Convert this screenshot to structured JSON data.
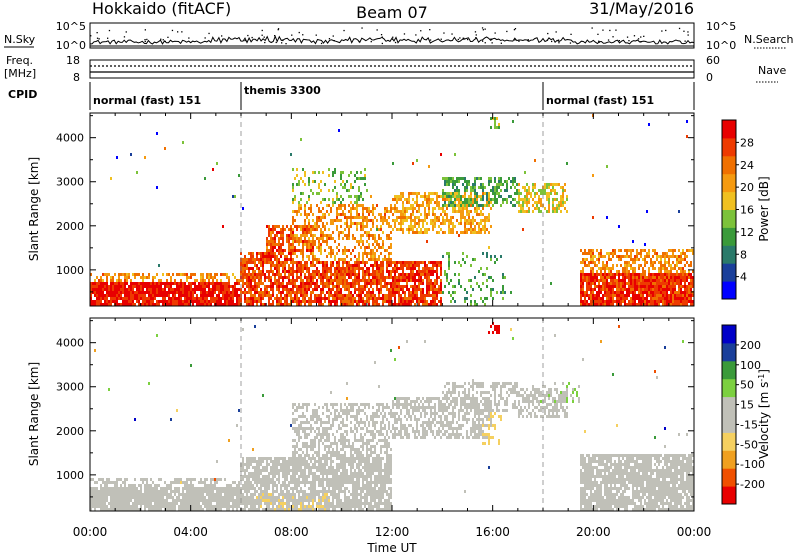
{
  "header": {
    "station": "Hokkaido (fitACF)",
    "beam": "Beam 07",
    "date": "31/May/2016"
  },
  "strip_labels": {
    "nsky": "N.Sky",
    "nsearch": "N.Search",
    "freq_line1": "Freq.",
    "freq_line2": "[MHz]",
    "nave": "Nave",
    "cpid": "CPID"
  },
  "noise_panel": {
    "left_ticks": [
      "10^5",
      "10^0"
    ],
    "right_ticks": [
      "10^5",
      "10^0"
    ]
  },
  "freq_panel": {
    "left_ticks": [
      "18",
      "8"
    ],
    "right_ticks": [
      "60",
      "0"
    ]
  },
  "cpid_segments": [
    {
      "label": "normal (fast) 151",
      "start_hour": 0,
      "end_hour": 6
    },
    {
      "label": "themis 3300",
      "start_hour": 6,
      "end_hour": 18
    },
    {
      "label": "normal (fast) 151",
      "start_hour": 18,
      "end_hour": 24
    }
  ],
  "chart_data": [
    {
      "type": "heatmap",
      "title": "Power",
      "xlabel": "Time UT",
      "ylabel": "Slant Range [km]",
      "x_ticks": [
        "00:00",
        "04:00",
        "08:00",
        "12:00",
        "16:00",
        "20:00",
        "00:00"
      ],
      "xlim_hours": [
        0,
        24
      ],
      "y_ticks": [
        1000,
        2000,
        3000,
        4000
      ],
      "ylim": [
        180,
        4560
      ],
      "colorbar": {
        "label": "Power [dB]",
        "ticks": [
          "4",
          "8",
          "12",
          "16",
          "20",
          "24",
          "28"
        ],
        "range": [
          0,
          32
        ],
        "colors": [
          "#0000ff",
          "#1a3f9a",
          "#2a7a6a",
          "#3a9a3a",
          "#7cc23a",
          "#f0c020",
          "#f59a10",
          "#f07000",
          "#ee3a00",
          "#e80000"
        ]
      },
      "regions": [
        {
          "t0": 0,
          "t1": 6,
          "r0": 200,
          "r1": 700,
          "v": 30,
          "d": 0.9
        },
        {
          "t0": 0,
          "t1": 6,
          "r0": 700,
          "r1": 900,
          "v": 22,
          "d": 0.5
        },
        {
          "t0": 6,
          "t1": 8,
          "r0": 200,
          "r1": 1400,
          "v": 27,
          "d": 0.75
        },
        {
          "t0": 7,
          "t1": 9,
          "r0": 1400,
          "r1": 2000,
          "v": 26,
          "d": 0.65
        },
        {
          "t0": 8,
          "t1": 12,
          "r0": 200,
          "r1": 1200,
          "v": 27,
          "d": 0.8
        },
        {
          "t0": 8,
          "t1": 12,
          "r0": 1200,
          "r1": 2500,
          "v": 22,
          "d": 0.45
        },
        {
          "t0": 8,
          "t1": 11,
          "r0": 2500,
          "r1": 3300,
          "v": 14,
          "d": 0.25
        },
        {
          "t0": 12,
          "t1": 14,
          "r0": 200,
          "r1": 1200,
          "v": 28,
          "d": 0.75
        },
        {
          "t0": 12,
          "t1": 16,
          "r0": 1800,
          "r1": 2800,
          "v": 20,
          "d": 0.55
        },
        {
          "t0": 14,
          "t1": 17,
          "r0": 2400,
          "r1": 3100,
          "v": 12,
          "d": 0.5
        },
        {
          "t0": 14,
          "t1": 16.5,
          "r0": 200,
          "r1": 1400,
          "v": 12,
          "d": 0.2
        },
        {
          "t0": 17,
          "t1": 19,
          "r0": 2300,
          "r1": 3000,
          "v": 17,
          "d": 0.55
        },
        {
          "t0": 19.5,
          "t1": 24,
          "r0": 200,
          "r1": 900,
          "v": 28,
          "d": 0.9
        },
        {
          "t0": 19.5,
          "t1": 24,
          "r0": 900,
          "r1": 1500,
          "v": 22,
          "d": 0.55
        },
        {
          "t0": 15.8,
          "t1": 16.3,
          "r0": 4200,
          "r1": 4450,
          "v": 14,
          "d": 0.5
        }
      ]
    },
    {
      "type": "heatmap",
      "title": "Velocity",
      "xlabel": "Time UT",
      "ylabel": "Slant Range [km]",
      "x_ticks": [
        "00:00",
        "04:00",
        "08:00",
        "12:00",
        "16:00",
        "20:00",
        "00:00"
      ],
      "xlim_hours": [
        0,
        24
      ],
      "y_ticks": [
        1000,
        2000,
        3000,
        4000
      ],
      "ylim": [
        180,
        4560
      ],
      "colorbar": {
        "label": "Velocity [m s^-1]",
        "ticks": [
          "200",
          "100",
          "50",
          "15",
          "-15",
          "-50",
          "-100",
          "-200"
        ],
        "range": [
          -250,
          250
        ],
        "colors": [
          "#e80000",
          "#f05000",
          "#f0a020",
          "#f5d060",
          "#c0c0b8",
          "#c0c0b8",
          "#7cd040",
          "#3a9a3a",
          "#1a3f9a",
          "#0000c8"
        ]
      },
      "regions": [
        {
          "t0": 0,
          "t1": 6,
          "r0": 200,
          "r1": 700,
          "v": 0,
          "d": 0.9
        },
        {
          "t0": 0,
          "t1": 6,
          "r0": 700,
          "r1": 900,
          "v": 0,
          "d": 0.5
        },
        {
          "t0": 6,
          "t1": 12,
          "r0": 200,
          "r1": 1400,
          "v": 0,
          "d": 0.8
        },
        {
          "t0": 8,
          "t1": 12,
          "r0": 1400,
          "r1": 2600,
          "v": 0,
          "d": 0.55
        },
        {
          "t0": 12,
          "t1": 16,
          "r0": 1800,
          "r1": 2800,
          "v": 0,
          "d": 0.6
        },
        {
          "t0": 14,
          "t1": 17,
          "r0": 2400,
          "r1": 3100,
          "v": 0,
          "d": 0.5
        },
        {
          "t0": 17,
          "t1": 19,
          "r0": 2300,
          "r1": 3000,
          "v": 0,
          "d": 0.55
        },
        {
          "t0": 19.5,
          "t1": 24,
          "r0": 200,
          "r1": 1500,
          "v": 0,
          "d": 0.85
        },
        {
          "t0": 6.5,
          "t1": 9.5,
          "r0": 200,
          "r1": 600,
          "v": -70,
          "d": 0.2
        },
        {
          "t0": 15.6,
          "t1": 16.4,
          "r0": 1700,
          "r1": 2400,
          "v": -70,
          "d": 0.3
        },
        {
          "t0": 17.5,
          "t1": 19.5,
          "r0": 2600,
          "r1": 3100,
          "v": 40,
          "d": 0.25
        },
        {
          "t0": 15.8,
          "t1": 16.3,
          "r0": 4200,
          "r1": 4450,
          "v": -220,
          "d": 0.5
        }
      ]
    }
  ]
}
